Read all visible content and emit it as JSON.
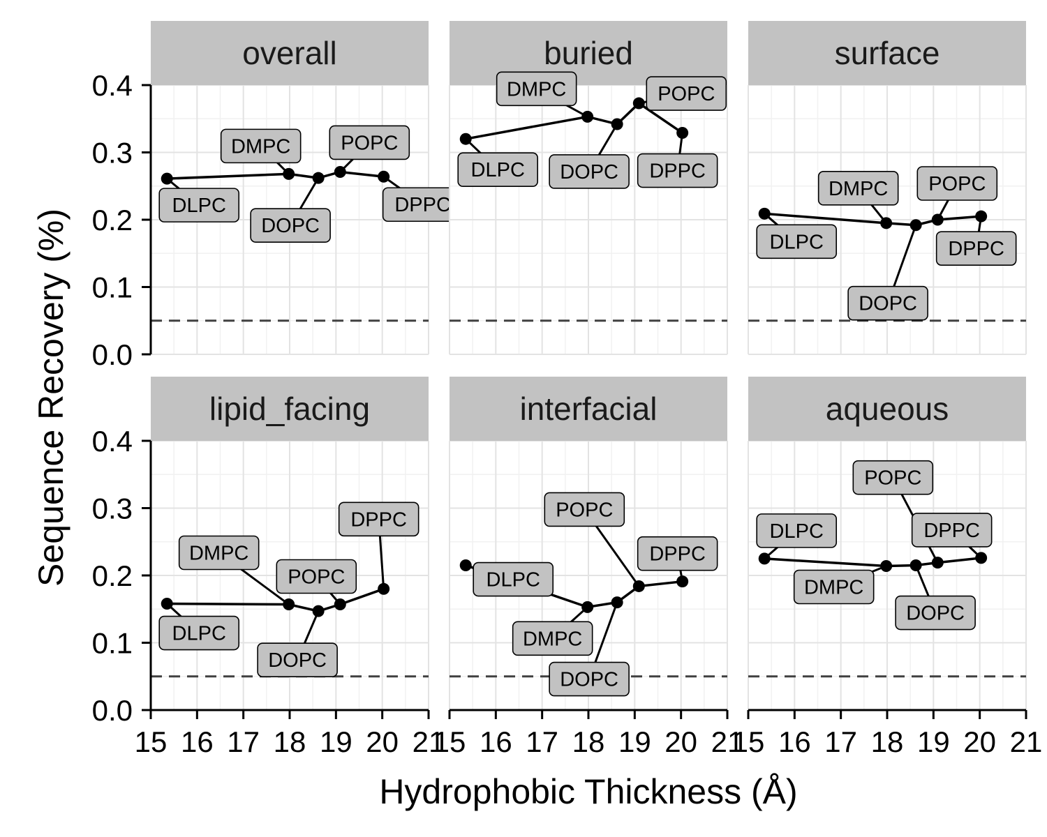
{
  "chart_data": {
    "type": "line",
    "xlabel": "Hydrophobic Thickness (Å)",
    "ylabel": "Sequence Recovery (%)",
    "xlim": [
      15,
      21
    ],
    "ylim": [
      0,
      0.4
    ],
    "x_ticks": [
      "15",
      "16",
      "17",
      "18",
      "19",
      "20",
      "21"
    ],
    "y_ticks": [
      "0.0",
      "0.1",
      "0.2",
      "0.3",
      "0.4"
    ],
    "reference_line": {
      "y": 0.05,
      "style": "dashed"
    },
    "grid": true,
    "colors": {
      "strip": "#c2c2c2",
      "grid_major": "#e3e3e3",
      "grid_minor": "#f1f1f1",
      "line": "#000000",
      "label_fill": "#c2c2c2",
      "dashed": "#404040"
    },
    "point_labels": [
      "DLPC",
      "DMPC",
      "DOPC",
      "POPC",
      "DPPC"
    ],
    "x": [
      15.35,
      17.98,
      18.62,
      19.09,
      20.03
    ],
    "panels": [
      {
        "title": "overall",
        "values": [
          0.261,
          0.268,
          0.262,
          0.271,
          0.264
        ]
      },
      {
        "title": "buried",
        "values": [
          0.32,
          0.353,
          0.342,
          0.373,
          0.329
        ]
      },
      {
        "title": "surface",
        "values": [
          0.209,
          0.195,
          0.192,
          0.2,
          0.205
        ]
      },
      {
        "title": "lipid_facing",
        "values": [
          0.158,
          0.157,
          0.147,
          0.157,
          0.18
        ]
      },
      {
        "title": "interfacial",
        "values": [
          0.215,
          0.153,
          0.16,
          0.184,
          0.191
        ]
      },
      {
        "title": "aqueous",
        "values": [
          0.225,
          0.214,
          0.215,
          0.219,
          0.226
        ]
      }
    ]
  }
}
